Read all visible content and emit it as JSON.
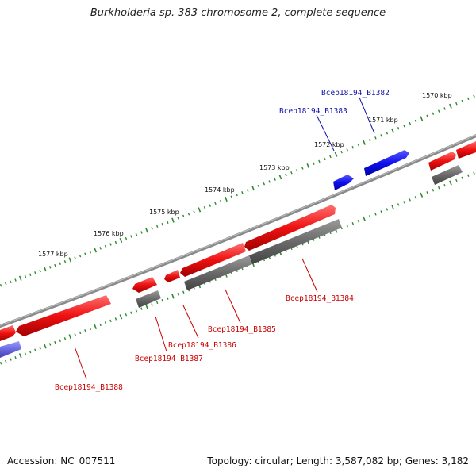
{
  "title": "Burkholderia sp. 383 chromosome 2, complete sequence",
  "footer": {
    "accession": "Accession: NC_007511",
    "summary": "Topology: circular; Length: 3,587,082 bp; Genes: 3,182"
  },
  "colors": {
    "backbone": "#8a8a8a",
    "tick": "#2e8b2e",
    "forward_gene": "#1010ee",
    "reverse_gene": "#ee1111",
    "cds_gray": "#6a6a6a",
    "label_blue": "#1010aa",
    "label_red": "#cc0000"
  },
  "kbp_labels": [
    "1570 kbp",
    "1571 kbp",
    "1572 kbp",
    "1573 kbp",
    "1574 kbp",
    "1575 kbp",
    "1576 kbp",
    "1577 kbp"
  ],
  "gene_labels": [
    {
      "name": "Bcep18194_B1382",
      "strand": "forward"
    },
    {
      "name": "Bcep18194_B1383",
      "strand": "forward"
    },
    {
      "name": "Bcep18194_B1384",
      "strand": "reverse"
    },
    {
      "name": "Bcep18194_B1385",
      "strand": "reverse"
    },
    {
      "name": "Bcep18194_B1386",
      "strand": "reverse"
    },
    {
      "name": "Bcep18194_B1387",
      "strand": "reverse"
    },
    {
      "name": "Bcep18194_B1388",
      "strand": "reverse"
    }
  ]
}
